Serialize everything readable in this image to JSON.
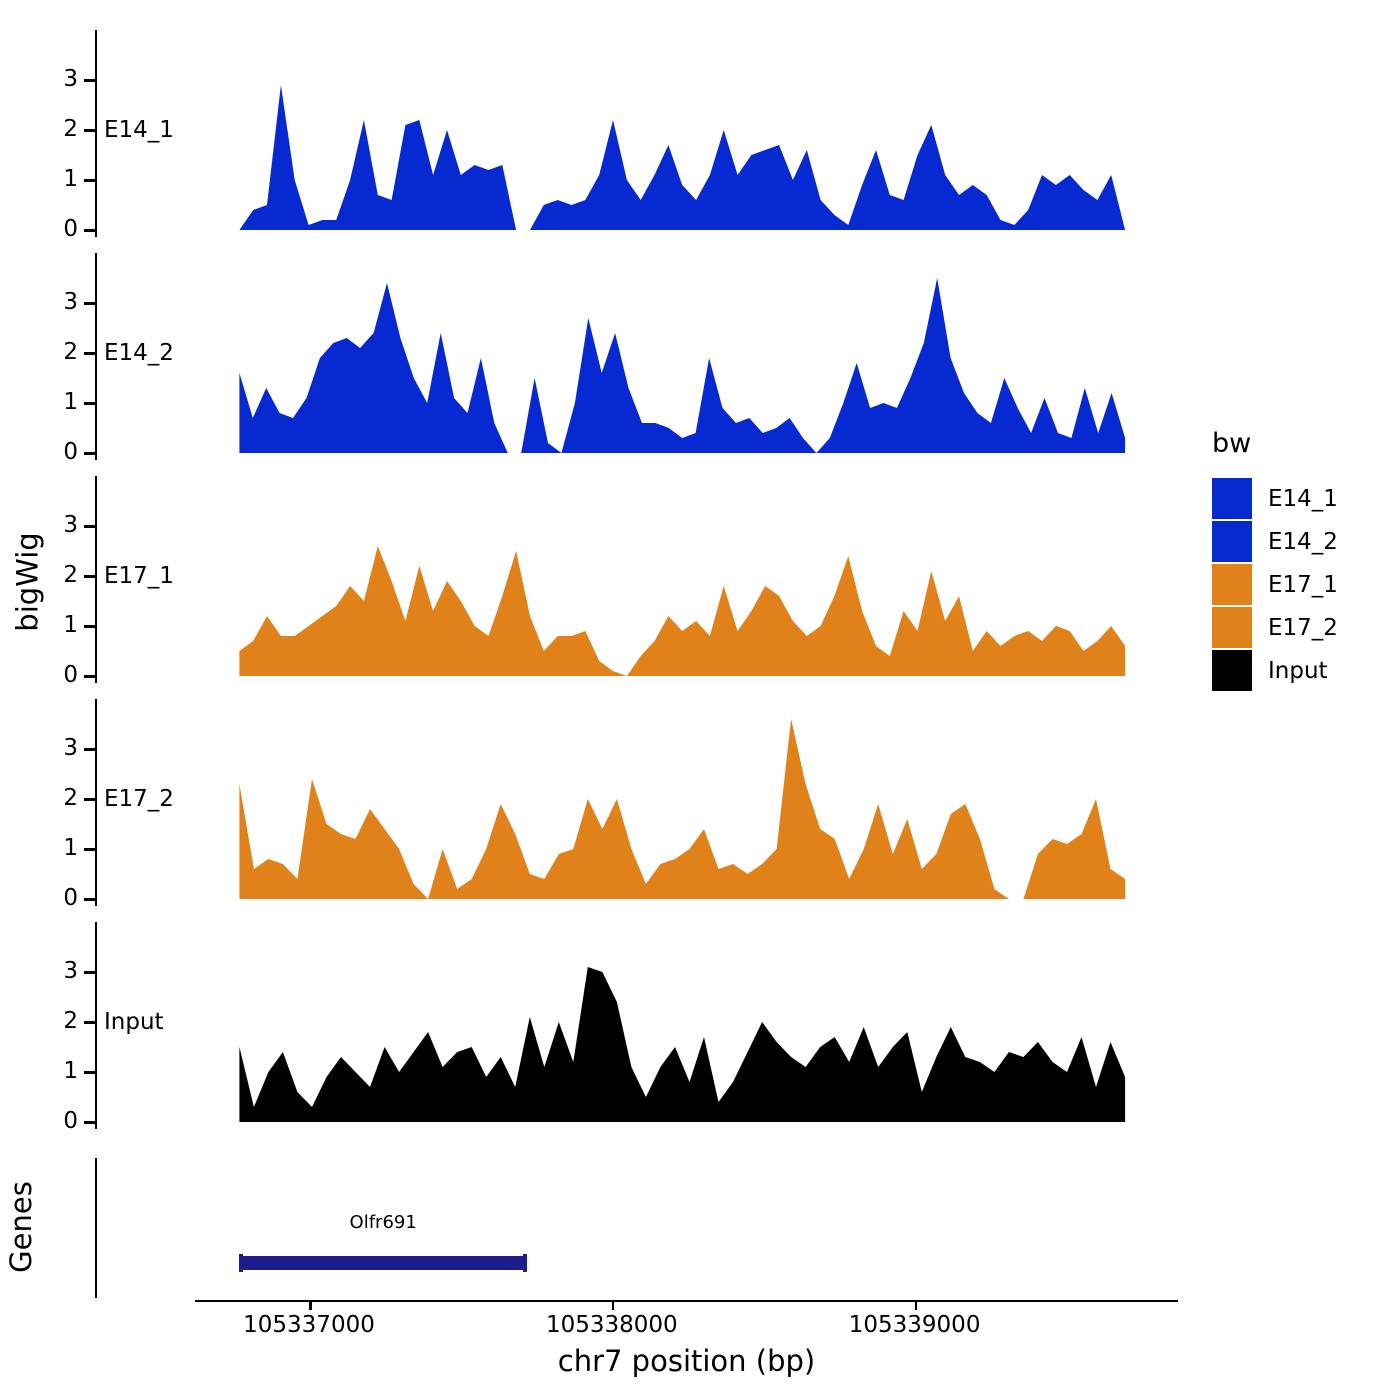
{
  "figure": {
    "y_axis_title": "bigWig",
    "genes_axis_title": "Genes",
    "x_axis_title": "chr7 position (bp)"
  },
  "legend": {
    "title": "bw",
    "items": [
      {
        "label": "E14_1",
        "color": "#0629d2"
      },
      {
        "label": "E14_2",
        "color": "#0629d2"
      },
      {
        "label": "E17_1",
        "color": "#e0811a"
      },
      {
        "label": "E17_2",
        "color": "#e0811a"
      },
      {
        "label": "Input",
        "color": "#000000"
      }
    ]
  },
  "chart_data": {
    "type": "area",
    "title": "",
    "xlabel": "chr7 position (bp)",
    "ylabel": "bigWig",
    "xlim": [
      105336640,
      105339850
    ],
    "xticks": [
      105337000,
      105338000,
      105339000
    ],
    "ylim": [
      0,
      3.5
    ],
    "yticks": [
      0,
      1,
      2,
      3
    ],
    "legend_position": "right",
    "grid": false,
    "data_x_start": 105336770,
    "data_x_end": 105339695,
    "tracks": [
      {
        "name": "E14_1",
        "color": "#0629d2",
        "values": [
          0,
          0.4,
          0.5,
          2.9,
          1.0,
          0.1,
          0.2,
          0.2,
          1.0,
          2.2,
          0.7,
          0.6,
          2.1,
          2.2,
          1.1,
          2.0,
          1.1,
          1.3,
          1.2,
          1.3,
          0,
          0,
          0.5,
          0.6,
          0.5,
          0.6,
          1.1,
          2.2,
          1.0,
          0.6,
          1.1,
          1.7,
          0.9,
          0.6,
          1.1,
          2.0,
          1.1,
          1.5,
          1.6,
          1.7,
          1.0,
          1.6,
          0.6,
          0.3,
          0.1,
          0.9,
          1.6,
          0.7,
          0.6,
          1.5,
          2.1,
          1.1,
          0.7,
          0.9,
          0.7,
          0.2,
          0.1,
          0.4,
          1.1,
          0.9,
          1.1,
          0.8,
          0.6,
          1.1,
          0
        ]
      },
      {
        "name": "E14_2",
        "color": "#0629d2",
        "values": [
          1.6,
          0.7,
          1.3,
          0.8,
          0.7,
          1.1,
          1.9,
          2.2,
          2.3,
          2.1,
          2.4,
          3.4,
          2.3,
          1.5,
          1.0,
          2.4,
          1.1,
          0.8,
          1.9,
          0.6,
          0,
          0,
          1.5,
          0.2,
          0,
          1.0,
          2.7,
          1.6,
          2.4,
          1.3,
          0.6,
          0.6,
          0.5,
          0.3,
          0.4,
          1.9,
          0.9,
          0.6,
          0.7,
          0.4,
          0.5,
          0.7,
          0.3,
          0,
          0.3,
          1.0,
          1.8,
          0.9,
          1.0,
          0.9,
          1.5,
          2.2,
          3.5,
          1.9,
          1.2,
          0.8,
          0.6,
          1.5,
          0.9,
          0.4,
          1.1,
          0.4,
          0.3,
          1.3,
          0.4,
          1.2,
          0.3
        ]
      },
      {
        "name": "E17_1",
        "color": "#e0811a",
        "values": [
          0.5,
          0.7,
          1.2,
          0.8,
          0.8,
          1.0,
          1.2,
          1.4,
          1.8,
          1.5,
          2.6,
          1.9,
          1.1,
          2.2,
          1.3,
          1.9,
          1.5,
          1.0,
          0.8,
          1.6,
          2.5,
          1.2,
          0.5,
          0.8,
          0.8,
          0.9,
          0.3,
          0.1,
          0,
          0.4,
          0.7,
          1.2,
          0.9,
          1.1,
          0.8,
          1.8,
          0.9,
          1.3,
          1.8,
          1.6,
          1.1,
          0.8,
          1.0,
          1.6,
          2.4,
          1.3,
          0.6,
          0.4,
          1.3,
          0.9,
          2.1,
          1.1,
          1.6,
          0.5,
          0.9,
          0.6,
          0.8,
          0.9,
          0.7,
          1.0,
          0.9,
          0.5,
          0.7,
          1.0,
          0.6
        ]
      },
      {
        "name": "E17_2",
        "color": "#e0811a",
        "values": [
          2.3,
          0.6,
          0.8,
          0.7,
          0.4,
          2.4,
          1.5,
          1.3,
          1.2,
          1.8,
          1.4,
          1.0,
          0.3,
          0,
          1.0,
          0.2,
          0.4,
          1.0,
          1.9,
          1.3,
          0.5,
          0.4,
          0.9,
          1.0,
          2.0,
          1.4,
          2.0,
          1.0,
          0.3,
          0.7,
          0.8,
          1.0,
          1.4,
          0.6,
          0.7,
          0.5,
          0.7,
          1.0,
          3.6,
          2.3,
          1.4,
          1.2,
          0.4,
          1.0,
          1.9,
          0.9,
          1.6,
          0.6,
          0.9,
          1.7,
          1.9,
          1.2,
          0.2,
          0,
          0,
          0.9,
          1.2,
          1.1,
          1.3,
          2.0,
          0.6,
          0.4
        ]
      },
      {
        "name": "Input",
        "color": "#000000",
        "values": [
          1.5,
          0.3,
          1.0,
          1.4,
          0.6,
          0.3,
          0.9,
          1.3,
          1.0,
          0.7,
          1.5,
          1.0,
          1.4,
          1.8,
          1.1,
          1.4,
          1.5,
          0.9,
          1.3,
          0.7,
          2.1,
          1.1,
          2.0,
          1.2,
          3.1,
          3.0,
          2.4,
          1.1,
          0.5,
          1.1,
          1.5,
          0.8,
          1.7,
          0.4,
          0.8,
          1.4,
          2.0,
          1.6,
          1.3,
          1.1,
          1.5,
          1.7,
          1.2,
          1.9,
          1.1,
          1.5,
          1.8,
          0.6,
          1.3,
          1.9,
          1.3,
          1.2,
          1.0,
          1.4,
          1.3,
          1.6,
          1.2,
          1.0,
          1.7,
          0.7,
          1.6,
          0.9
        ]
      }
    ],
    "genes_track": {
      "label": "Genes",
      "genes": [
        {
          "name": "Olfr691",
          "start": 105336770,
          "end": 105337720,
          "color": "#1c1c8c"
        }
      ]
    }
  }
}
